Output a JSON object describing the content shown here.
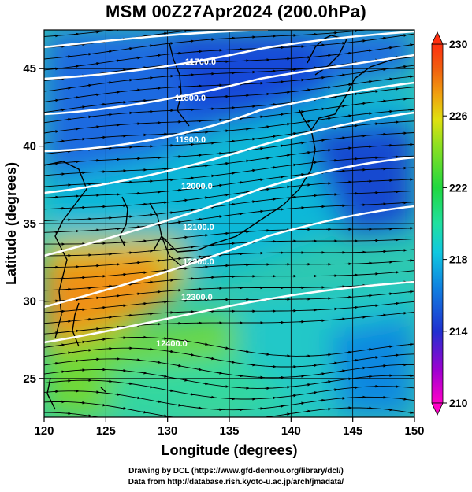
{
  "title": "MSM 00Z27Apr2024 (200.0hPa)",
  "x_axis": {
    "label": "Longitude (degrees)",
    "range": [
      120,
      150
    ],
    "ticks": [
      "120",
      "125",
      "130",
      "135",
      "140",
      "145",
      "150"
    ]
  },
  "y_axis": {
    "label": "Latitude  (degrees)",
    "range": [
      22.5,
      47.5
    ],
    "ticks": [
      "25",
      "30",
      "35",
      "40",
      "45"
    ]
  },
  "colorbar": {
    "range": [
      210,
      230
    ],
    "ticks": [
      "210",
      "214",
      "218",
      "222",
      "226",
      "230"
    ],
    "colors": [
      "#ff00c8",
      "#a000d0",
      "#2030d0",
      "#1080e0",
      "#10c8e0",
      "#20e0a0",
      "#20d840",
      "#90e020",
      "#e0e010",
      "#f0a010",
      "#f06010",
      "#ff3010"
    ]
  },
  "contours": [
    {
      "label": "11700.0"
    },
    {
      "label": "11800.0"
    },
    {
      "label": "11900.0"
    },
    {
      "label": "12000.0"
    },
    {
      "label": "12100.0"
    },
    {
      "label": "12200.0"
    },
    {
      "label": "12300.0"
    },
    {
      "label": "12400.0"
    }
  ],
  "credits": {
    "line1": "Drawing by DCL (https://www.gfd-dennou.org/library/dcl/)",
    "line2": "Data from http://database.rish.kyoto-u.ac.jp/arch/jmadata/"
  }
}
